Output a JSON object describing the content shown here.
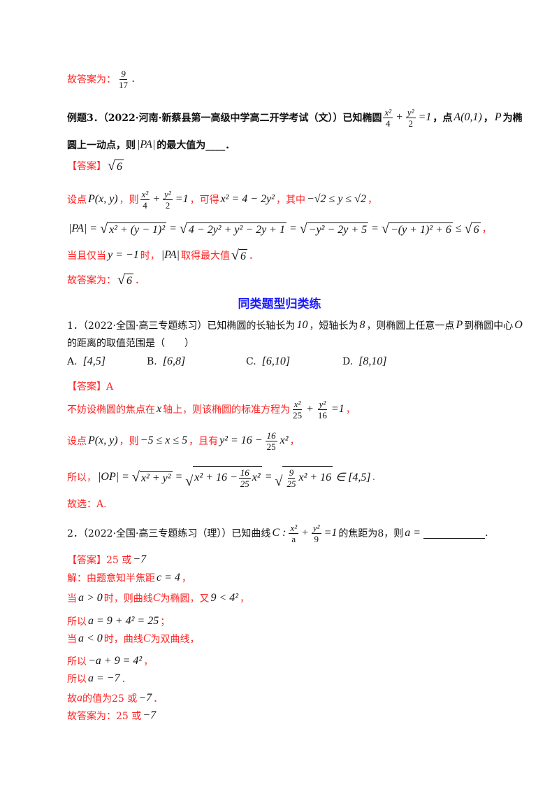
{
  "heading": "同类题型归类练",
  "options": [
    {
      "label": "A.",
      "value": "[4,5]"
    },
    {
      "label": "B.",
      "value": "[6,8]"
    },
    {
      "label": "C.",
      "value": "[6,10]"
    },
    {
      "label": "D.",
      "value": "[8,10]"
    }
  ],
  "lines": [
    {
      "segs": [
        {
          "c": "r",
          "t": "故答案为："
        },
        {
          "c": "f",
          "n": "9",
          "d": "17"
        },
        {
          "c": "m",
          "t": "."
        }
      ]
    },
    {
      "segs": [
        {
          "c": "k",
          "t": "例题3．（2022·河南·新蔡县第一高级中学高二开学考试（文））已知椭圆"
        },
        {
          "c": "f",
          "n": "x²",
          "d": "4"
        },
        {
          "c": "m",
          "t": "+"
        },
        {
          "c": "f",
          "n": "y²",
          "d": "2"
        },
        {
          "c": "m",
          "t": "=1"
        },
        {
          "c": "k",
          "t": "，点"
        },
        {
          "c": "m",
          "t": "A(0,1)"
        },
        {
          "c": "k",
          "t": "，"
        },
        {
          "c": "m",
          "t": "P"
        },
        {
          "c": "k",
          "t": "为椭"
        }
      ]
    },
    {
      "segs": [
        {
          "c": "k",
          "t": "圆上一动点，则"
        },
        {
          "c": "m",
          "t": "|PA|"
        },
        {
          "c": "k",
          "t": "的最大值为____．"
        }
      ]
    },
    {
      "segs": [
        {
          "c": "r",
          "t": "【答案】"
        },
        {
          "c": "s",
          "parts": [
            {
              "c": "m",
              "t": "6"
            }
          ]
        }
      ]
    },
    {
      "segs": [
        {
          "c": "r",
          "t": "设点"
        },
        {
          "c": "m",
          "t": "P(x, y)"
        },
        {
          "c": "r",
          "t": "，则"
        },
        {
          "c": "f",
          "n": "x²",
          "d": "4"
        },
        {
          "c": "m",
          "t": "+"
        },
        {
          "c": "f",
          "n": "y²",
          "d": "2"
        },
        {
          "c": "m",
          "t": "=1"
        },
        {
          "c": "r",
          "t": "，可得"
        },
        {
          "c": "m",
          "t": "x² = 4 − 2y²"
        },
        {
          "c": "r",
          "t": "，其中"
        },
        {
          "c": "m",
          "t": "−√2 ≤ y ≤ √2"
        },
        {
          "c": "r",
          "t": "，"
        }
      ]
    },
    {
      "segs": [
        {
          "c": "m",
          "t": "|PA| ="
        },
        {
          "c": "s",
          "parts": [
            {
              "c": "m",
              "t": "x² + (y − 1)²"
            }
          ]
        },
        {
          "c": "m",
          "t": "="
        },
        {
          "c": "s",
          "parts": [
            {
              "c": "m",
              "t": "4 − 2y² + y² − 2y + 1"
            }
          ]
        },
        {
          "c": "m",
          "t": "="
        },
        {
          "c": "s",
          "parts": [
            {
              "c": "m",
              "t": "−y² − 2y + 5"
            }
          ]
        },
        {
          "c": "m",
          "t": "="
        },
        {
          "c": "s",
          "parts": [
            {
              "c": "m",
              "t": "−(y + 1)² + 6"
            }
          ]
        },
        {
          "c": "m",
          "t": "≤"
        },
        {
          "c": "s",
          "parts": [
            {
              "c": "m",
              "t": "6"
            }
          ]
        },
        {
          "c": "r",
          "t": "，"
        }
      ]
    },
    {
      "segs": [
        {
          "c": "r",
          "t": "当且仅当"
        },
        {
          "c": "m",
          "t": "y = −1"
        },
        {
          "c": "r",
          "t": "时，"
        },
        {
          "c": "m",
          "t": "|PA|"
        },
        {
          "c": "r",
          "t": "取得最大值"
        },
        {
          "c": "s",
          "parts": [
            {
              "c": "m",
              "t": "6"
            }
          ]
        },
        {
          "c": "r",
          "t": "．"
        }
      ]
    },
    {
      "segs": [
        {
          "c": "r",
          "t": "故答案为："
        },
        {
          "c": "s",
          "parts": [
            {
              "c": "m",
              "t": "6"
            }
          ]
        },
        {
          "c": "r",
          "t": "．"
        }
      ]
    },
    {
      "segs": [
        {
          "c": "n",
          "t": "1．（2022·全国·高三专题练习）已知椭圆的长轴长为"
        },
        {
          "c": "m",
          "t": "10"
        },
        {
          "c": "n",
          "t": "，短轴长为"
        },
        {
          "c": "m",
          "t": "8"
        },
        {
          "c": "n",
          "t": "，则椭圆上任意一点"
        },
        {
          "c": "m",
          "t": "P"
        },
        {
          "c": "n",
          "t": "到椭圆中心"
        },
        {
          "c": "m",
          "t": "O"
        }
      ]
    },
    {
      "segs": [
        {
          "c": "n",
          "t": "的距离的取值范围是（　　）"
        }
      ]
    },
    {
      "segs": [
        {
          "c": "r",
          "t": "【答案】A"
        }
      ]
    },
    {
      "segs": [
        {
          "c": "r",
          "t": "不妨设椭圆的焦点在"
        },
        {
          "c": "m",
          "t": "x"
        },
        {
          "c": "r",
          "t": "轴上，则该椭圆的标准方程为"
        },
        {
          "c": "f",
          "n": "x²",
          "d": "25"
        },
        {
          "c": "m",
          "t": "+"
        },
        {
          "c": "f",
          "n": "y²",
          "d": "16"
        },
        {
          "c": "m",
          "t": "=1"
        },
        {
          "c": "r",
          "t": "，"
        }
      ]
    },
    {
      "segs": [
        {
          "c": "r",
          "t": "设点"
        },
        {
          "c": "m",
          "t": "P(x, y)"
        },
        {
          "c": "r",
          "t": "，则"
        },
        {
          "c": "m",
          "t": "−5 ≤ x ≤ 5"
        },
        {
          "c": "r",
          "t": "，且有"
        },
        {
          "c": "m",
          "t": "y² = 16 −"
        },
        {
          "c": "f",
          "n": "16",
          "d": "25"
        },
        {
          "c": "m",
          "t": "x²"
        },
        {
          "c": "r",
          "t": "，"
        }
      ]
    },
    {
      "segs": [
        {
          "c": "r",
          "t": "所以，"
        },
        {
          "c": "m",
          "t": "|OP| ="
        },
        {
          "c": "s",
          "parts": [
            {
              "c": "m",
              "t": "x² + y²"
            }
          ]
        },
        {
          "c": "m",
          "t": "="
        },
        {
          "c": "s",
          "parts": [
            {
              "c": "m",
              "t": "x² + 16 −"
            },
            {
              "c": "f",
              "n": "16",
              "d": "25"
            },
            {
              "c": "m",
              "t": "x²"
            }
          ]
        },
        {
          "c": "m",
          "t": "="
        },
        {
          "c": "s",
          "parts": [
            {
              "c": "f",
              "n": "9",
              "d": "25"
            },
            {
              "c": "m",
              "t": "x² + 16"
            }
          ]
        },
        {
          "c": "m",
          "t": "∈ [4,5]"
        },
        {
          "c": "r",
          "t": "."
        }
      ]
    },
    {
      "segs": [
        {
          "c": "r",
          "t": "故选：A."
        }
      ]
    },
    {
      "segs": [
        {
          "c": "n",
          "t": "2．（2022·全国·高三专题练习（理））已知曲线"
        },
        {
          "c": "m",
          "t": "C :"
        },
        {
          "c": "f",
          "n": "x²",
          "d": "a"
        },
        {
          "c": "m",
          "t": "+"
        },
        {
          "c": "f",
          "n": "y²",
          "d": "9"
        },
        {
          "c": "m",
          "t": "=1"
        },
        {
          "c": "n",
          "t": "的焦距为8，则"
        },
        {
          "c": "m",
          "t": "a ="
        },
        {
          "c": "blank"
        },
        {
          "c": "n",
          "t": "."
        }
      ]
    },
    {
      "segs": [
        {
          "c": "r",
          "t": "【答案】25 或"
        },
        {
          "c": "m",
          "t": "−7"
        }
      ]
    },
    {
      "segs": [
        {
          "c": "r",
          "t": "解：由题意知半焦距"
        },
        {
          "c": "m",
          "t": "c = 4"
        },
        {
          "c": "r",
          "t": "，"
        }
      ]
    },
    {
      "segs": [
        {
          "c": "r",
          "t": "当"
        },
        {
          "c": "m",
          "t": "a > 0"
        },
        {
          "c": "r",
          "t": "时，则曲线"
        },
        {
          "c": "ri",
          "t": "C"
        },
        {
          "c": "r",
          "t": "为椭圆，又"
        },
        {
          "c": "m",
          "t": "9 < 4²"
        },
        {
          "c": "r",
          "t": "，"
        }
      ]
    },
    {
      "segs": [
        {
          "c": "r",
          "t": "所以"
        },
        {
          "c": "m",
          "t": "a = 9 + 4² = 25"
        },
        {
          "c": "r",
          "t": "；"
        }
      ]
    },
    {
      "segs": [
        {
          "c": "r",
          "t": "当"
        },
        {
          "c": "m",
          "t": "a < 0"
        },
        {
          "c": "r",
          "t": "时，曲线"
        },
        {
          "c": "ri",
          "t": "C"
        },
        {
          "c": "r",
          "t": "为双曲线，"
        }
      ]
    },
    {
      "segs": [
        {
          "c": "r",
          "t": "所以"
        },
        {
          "c": "m",
          "t": "−a + 9 = 4²"
        },
        {
          "c": "r",
          "t": "，"
        }
      ]
    },
    {
      "segs": [
        {
          "c": "r",
          "t": "所以"
        },
        {
          "c": "m",
          "t": "a = −7"
        },
        {
          "c": "r",
          "t": "．"
        }
      ]
    },
    {
      "segs": [
        {
          "c": "r",
          "t": "故"
        },
        {
          "c": "ri",
          "t": "a"
        },
        {
          "c": "r",
          "t": "的值为25 或"
        },
        {
          "c": "m",
          "t": "−7"
        },
        {
          "c": "r",
          "t": "．"
        }
      ]
    },
    {
      "segs": [
        {
          "c": "r",
          "t": "故答案为：25 或"
        },
        {
          "c": "m",
          "t": "−7"
        }
      ]
    }
  ]
}
